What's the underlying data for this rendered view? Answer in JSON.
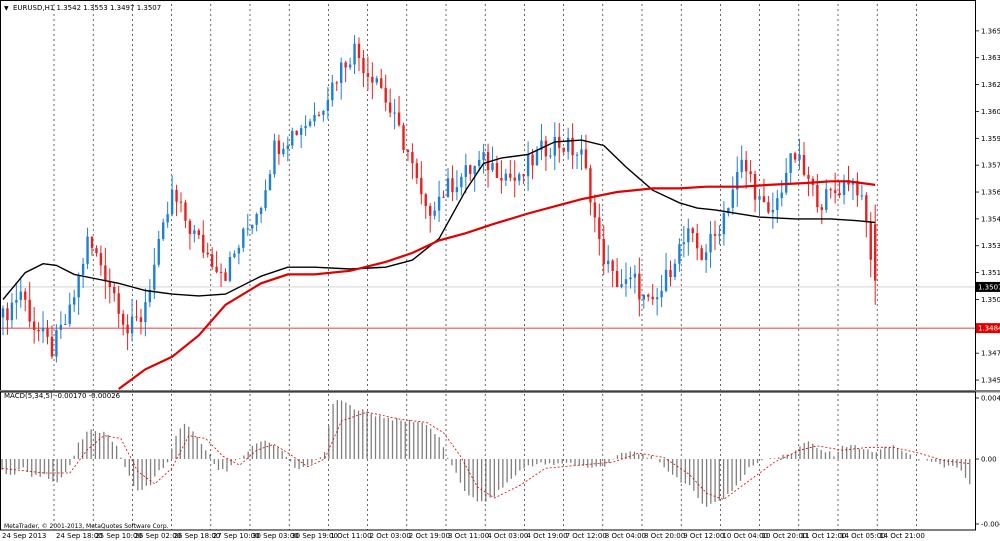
{
  "header": {
    "symbol_line": "EURUSD,H1  1.3542 1.3553 1.3497 1.3507",
    "macd_line": "MACD(5,34,5) -0.00170 -0.00026"
  },
  "footer": {
    "copyright": "MetaTrader, © 2001-2013, MetaQuotes Software Corp."
  },
  "colors": {
    "background": "#ffffff",
    "frame": "#000000",
    "grid": "#000000",
    "bull": "#1e7fd6",
    "bear": "#e8201e",
    "ma_slow": "#e00000",
    "ma_fast": "#000000",
    "price_marker": "#000000",
    "level_line": "#e00000",
    "macd_bar": "#7f7f7f",
    "macd_signal": "#e00000"
  },
  "chart_data": [
    {
      "type": "candlestick",
      "symbol": "EURUSD",
      "timeframe": "H1",
      "title": "EURUSD,H1  1.3542 1.3553 1.3497 1.3507",
      "current_price": "1.3507",
      "horizontal_level": "1.3484",
      "ylim": [
        1.345,
        1.3665
      ],
      "y_ticks": [
        "1.3650",
        "1.3635",
        "1.3620",
        "1.3605",
        "1.3590",
        "1.3575",
        "1.3560",
        "1.3545",
        "1.3530",
        "1.3515",
        "1.3500",
        "1.3470",
        "1.3455"
      ],
      "x_ticks": [
        "24 Sep 2013",
        "24 Sep 18:00",
        "25 Sep 10:00",
        "26 Sep 02:00",
        "26 Sep 18:00",
        "27 Sep 10:00",
        "30 Sep 03:00",
        "30 Sep 19:00",
        "1 Oct 11:00",
        "2 Oct 03:00",
        "2 Oct 19:00",
        "3 Oct 11:00",
        "4 Oct 03:00",
        "4 Oct 19:00",
        "7 Oct 12:00",
        "8 Oct 04:00",
        "8 Oct 20:00",
        "9 Oct 12:00",
        "10 Oct 04:00",
        "10 Oct 20:00",
        "11 Oct 12:00",
        "14 Oct 05:00",
        "14 Oct 21:00"
      ],
      "grid": "vertical-dotted",
      "close_path": [
        [
          0,
          1.349
        ],
        [
          4,
          1.3505
        ],
        [
          7,
          1.3485
        ],
        [
          11,
          1.3472
        ],
        [
          15,
          1.3492
        ],
        [
          19,
          1.3532
        ],
        [
          22,
          1.352
        ],
        [
          26,
          1.3498
        ],
        [
          28,
          1.3482
        ],
        [
          31,
          1.349
        ],
        [
          35,
          1.3528
        ],
        [
          38,
          1.3558
        ],
        [
          42,
          1.354
        ],
        [
          46,
          1.3525
        ],
        [
          50,
          1.3515
        ],
        [
          54,
          1.3535
        ],
        [
          58,
          1.3555
        ],
        [
          61,
          1.3585
        ],
        [
          65,
          1.3593
        ],
        [
          70,
          1.3603
        ],
        [
          73,
          1.3615
        ],
        [
          76,
          1.363
        ],
        [
          79,
          1.364
        ],
        [
          82,
          1.3627
        ],
        [
          84,
          1.3625
        ],
        [
          87,
          1.3605
        ],
        [
          91,
          1.3582
        ],
        [
          95,
          1.3547
        ],
        [
          97,
          1.3555
        ],
        [
          101,
          1.3565
        ],
        [
          105,
          1.3572
        ],
        [
          108,
          1.3577
        ],
        [
          112,
          1.3572
        ],
        [
          116,
          1.3565
        ],
        [
          118,
          1.3575
        ],
        [
          121,
          1.3583
        ],
        [
          124,
          1.3588
        ],
        [
          127,
          1.3585
        ],
        [
          130,
          1.358
        ],
        [
          132,
          1.356
        ],
        [
          134,
          1.353
        ],
        [
          137,
          1.3512
        ],
        [
          140,
          1.3508
        ],
        [
          142,
          1.351
        ],
        [
          144,
          1.35
        ],
        [
          146,
          1.3495
        ],
        [
          148,
          1.3505
        ],
        [
          151,
          1.3525
        ],
        [
          154,
          1.3535
        ],
        [
          157,
          1.3525
        ],
        [
          160,
          1.3535
        ],
        [
          162,
          1.3548
        ],
        [
          164,
          1.3562
        ],
        [
          166,
          1.3575
        ],
        [
          168,
          1.3568
        ],
        [
          170,
          1.3555
        ],
        [
          172,
          1.3545
        ],
        [
          174,
          1.3555
        ],
        [
          176,
          1.3572
        ],
        [
          178,
          1.358
        ],
        [
          180,
          1.357
        ],
        [
          182,
          1.356
        ],
        [
          184,
          1.3555
        ],
        [
          187,
          1.356
        ],
        [
          190,
          1.3568
        ],
        [
          192,
          1.3563
        ],
        [
          194,
          1.3542
        ],
        [
          196,
          1.3507
        ]
      ],
      "series": [
        {
          "name": "",
          "type": "line",
          "points": [
            [
              0,
              1.35
            ],
            [
              5,
              1.3515
            ],
            [
              9,
              1.352
            ],
            [
              12,
              1.3519
            ],
            [
              16,
              1.3514
            ],
            [
              20,
              1.3512
            ],
            [
              26,
              1.3509
            ],
            [
              32,
              1.3505
            ],
            [
              38,
              1.3503
            ],
            [
              44,
              1.3502
            ],
            [
              50,
              1.3503
            ],
            [
              58,
              1.3513
            ],
            [
              64,
              1.3518
            ],
            [
              70,
              1.3518
            ],
            [
              78,
              1.3517
            ],
            [
              86,
              1.3518
            ],
            [
              92,
              1.3522
            ],
            [
              98,
              1.3534
            ],
            [
              104,
              1.3561
            ],
            [
              108,
              1.3576
            ],
            [
              112,
              1.3579
            ],
            [
              118,
              1.3581
            ],
            [
              124,
              1.3588
            ],
            [
              130,
              1.3589
            ],
            [
              135,
              1.3586
            ],
            [
              140,
              1.3574
            ],
            [
              146,
              1.3561
            ],
            [
              152,
              1.3554
            ],
            [
              156,
              1.3551
            ],
            [
              160,
              1.355
            ],
            [
              170,
              1.3546
            ],
            [
              178,
              1.3545
            ],
            [
              186,
              1.3545
            ],
            [
              192,
              1.3544
            ],
            [
              196,
              1.3543
            ]
          ]
        },
        {
          "name": "",
          "type": "line",
          "points": [
            [
              26,
              1.345
            ],
            [
              32,
              1.3461
            ],
            [
              38,
              1.3468
            ],
            [
              44,
              1.348
            ],
            [
              50,
              1.3497
            ],
            [
              58,
              1.3509
            ],
            [
              64,
              1.3514
            ],
            [
              70,
              1.3514
            ],
            [
              78,
              1.3516
            ],
            [
              86,
              1.3521
            ],
            [
              92,
              1.3526
            ],
            [
              98,
              1.3533
            ],
            [
              104,
              1.3537
            ],
            [
              110,
              1.3542
            ],
            [
              118,
              1.3548
            ],
            [
              124,
              1.3552
            ],
            [
              130,
              1.3556
            ],
            [
              138,
              1.356
            ],
            [
              146,
              1.3562
            ],
            [
              152,
              1.3562
            ],
            [
              158,
              1.3563
            ],
            [
              166,
              1.3563
            ],
            [
              172,
              1.3564
            ],
            [
              180,
              1.3565
            ],
            [
              186,
              1.3566
            ],
            [
              190,
              1.3566
            ],
            [
              196,
              1.3564
            ]
          ]
        }
      ]
    },
    {
      "type": "bar",
      "title": "MACD(5,34,5) -0.00170 -0.00026",
      "y_ticks": [
        "0.00412",
        "0.00",
        "-0.00421"
      ],
      "ylim": [
        -0.0043,
        0.0043
      ],
      "values_path": [
        [
          0,
          -0.0008
        ],
        [
          3,
          -0.001
        ],
        [
          5,
          -0.0005
        ],
        [
          7,
          -0.0012
        ],
        [
          10,
          -0.001
        ],
        [
          13,
          -0.0015
        ],
        [
          16,
          -0.0005
        ],
        [
          18,
          0.001
        ],
        [
          20,
          0.0018
        ],
        [
          22,
          0.002
        ],
        [
          25,
          0.0017
        ],
        [
          27,
          0.0008
        ],
        [
          29,
          -0.0005
        ],
        [
          31,
          -0.0018
        ],
        [
          33,
          -0.002
        ],
        [
          35,
          -0.0016
        ],
        [
          37,
          -0.0008
        ],
        [
          39,
          -0.0002
        ],
        [
          41,
          0.0015
        ],
        [
          43,
          0.0025
        ],
        [
          45,
          0.0018
        ],
        [
          47,
          0.001
        ],
        [
          49,
          0.0002
        ],
        [
          51,
          -0.0006
        ],
        [
          53,
          -0.0008
        ],
        [
          55,
          -0.0002
        ],
        [
          57,
          0.0003
        ],
        [
          59,
          0.0008
        ],
        [
          61,
          0.0013
        ],
        [
          63,
          0.0012
        ],
        [
          66,
          0.0005
        ],
        [
          68,
          -0.0002
        ],
        [
          70,
          -0.0007
        ],
        [
          72,
          -0.0005
        ],
        [
          74,
          -0.0001
        ],
        [
          76,
          0.0005
        ],
        [
          78,
          0.0038
        ],
        [
          80,
          0.004
        ],
        [
          82,
          0.0036
        ],
        [
          85,
          0.0033
        ],
        [
          88,
          0.003
        ],
        [
          91,
          0.0028
        ],
        [
          94,
          0.0026
        ],
        [
          97,
          0.0026
        ],
        [
          100,
          0.0024
        ],
        [
          103,
          0.0014
        ],
        [
          106,
          -0.0005
        ],
        [
          109,
          -0.002
        ],
        [
          112,
          -0.0028
        ],
        [
          115,
          -0.0026
        ],
        [
          118,
          -0.0018
        ],
        [
          121,
          -0.001
        ],
        [
          124,
          -0.0004
        ],
        [
          127,
          -0.0003
        ],
        [
          130,
          -0.0004
        ],
        [
          133,
          -0.0002
        ],
        [
          136,
          -0.0004
        ],
        [
          139,
          -0.0006
        ],
        [
          142,
          -0.0004
        ],
        [
          145,
          0.0002
        ],
        [
          148,
          0.0005
        ],
        [
          151,
          0.0003
        ],
        [
          153,
          0.0001
        ],
        [
          156,
          -0.0005
        ],
        [
          159,
          -0.0012
        ],
        [
          162,
          -0.0018
        ],
        [
          164,
          -0.0025
        ],
        [
          166,
          -0.003
        ],
        [
          168,
          -0.0028
        ],
        [
          170,
          -0.0025
        ],
        [
          172,
          -0.002
        ],
        [
          174,
          -0.0014
        ],
        [
          176,
          -0.0006
        ],
        [
          178,
          -0.0002
        ],
        [
          180,
          0.0001
        ],
        [
          182,
          0.0001
        ],
        [
          184,
          0.0002
        ],
        [
          186,
          0.0004
        ],
        [
          188,
          0.0009
        ],
        [
          190,
          0.0012
        ],
        [
          192,
          0.0007
        ],
        [
          194,
          0.0005
        ],
        [
          196,
          0.0003
        ],
        [
          198,
          0.0008
        ],
        [
          200,
          0.001
        ],
        [
          202,
          0.0007
        ],
        [
          204,
          0.0006
        ],
        [
          206,
          0.0005
        ],
        [
          208,
          0.0007
        ],
        [
          210,
          0.0009
        ],
        [
          212,
          0.0006
        ],
        [
          214,
          0.0002
        ],
        [
          216,
          0.0
        ],
        [
          218,
          -0.0002
        ],
        [
          220,
          -0.0003
        ],
        [
          222,
          -0.0005
        ],
        [
          224,
          -0.0004
        ],
        [
          226,
          -0.0008
        ],
        [
          228,
          -0.0017
        ]
      ],
      "signal_path": [
        [
          0,
          -0.0006
        ],
        [
          10,
          -0.0009
        ],
        [
          16,
          -0.0009
        ],
        [
          20,
          0.0006
        ],
        [
          24,
          0.0016
        ],
        [
          28,
          0.0014
        ],
        [
          32,
          -0.0008
        ],
        [
          36,
          -0.0016
        ],
        [
          40,
          -0.0006
        ],
        [
          44,
          0.0016
        ],
        [
          48,
          0.0014
        ],
        [
          52,
          0.0002
        ],
        [
          56,
          -0.0004
        ],
        [
          60,
          0.0006
        ],
        [
          64,
          0.001
        ],
        [
          68,
          0.0003
        ],
        [
          72,
          -0.0005
        ],
        [
          76,
          0.0
        ],
        [
          80,
          0.0026
        ],
        [
          86,
          0.0032
        ],
        [
          94,
          0.0027
        ],
        [
          100,
          0.0025
        ],
        [
          104,
          0.0018
        ],
        [
          108,
          0.0002
        ],
        [
          112,
          -0.0018
        ],
        [
          116,
          -0.0025
        ],
        [
          122,
          -0.0017
        ],
        [
          128,
          -0.0006
        ],
        [
          136,
          -0.0004
        ],
        [
          144,
          -0.0002
        ],
        [
          150,
          0.0004
        ],
        [
          156,
          0.0001
        ],
        [
          162,
          -0.001
        ],
        [
          166,
          -0.0022
        ],
        [
          170,
          -0.0026
        ],
        [
          176,
          -0.0014
        ],
        [
          182,
          -0.0002
        ],
        [
          188,
          0.0006
        ],
        [
          192,
          0.0009
        ],
        [
          198,
          0.0006
        ],
        [
          204,
          0.0008
        ],
        [
          210,
          0.0008
        ],
        [
          216,
          0.0004
        ],
        [
          222,
          -0.0001
        ],
        [
          228,
          -0.0003
        ]
      ]
    }
  ]
}
